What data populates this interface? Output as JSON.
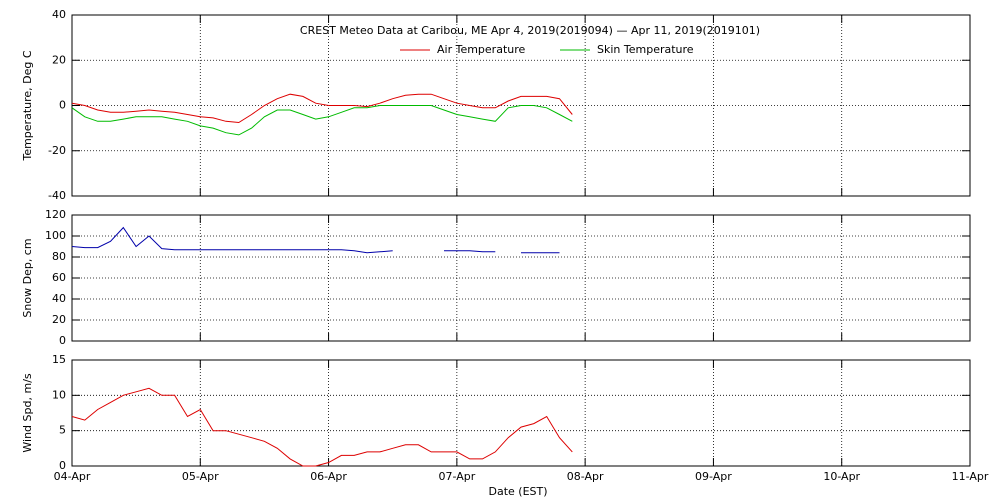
{
  "chart_data": [
    {
      "type": "line",
      "title": "CREST Meteo Data at Caribou, ME   Apr  4, 2019(2019094) — Apr 11, 2019(2019101)",
      "y_label": "Temperature, Deg C",
      "grid": true,
      "x": [
        4.0,
        4.1,
        4.2,
        4.3,
        4.4,
        4.5,
        4.6,
        4.7,
        4.8,
        4.9,
        5.0,
        5.1,
        5.2,
        5.3,
        5.4,
        5.5,
        5.6,
        5.7,
        5.8,
        5.9,
        6.0,
        6.1,
        6.2,
        6.3,
        6.4,
        6.5,
        6.6,
        6.7,
        6.8,
        6.9,
        7.0,
        7.1,
        7.2,
        7.3,
        7.4,
        7.5,
        7.6,
        7.7,
        7.8,
        7.9
      ],
      "xlim": [
        4,
        11
      ],
      "xticks": [
        4,
        5,
        6,
        7,
        8,
        9,
        10,
        11
      ],
      "ylim": [
        -40,
        40
      ],
      "yticks": [
        -40,
        -20,
        0,
        20,
        40
      ],
      "series": [
        {
          "name": "Air Temperature",
          "color": "#dd0000",
          "values": [
            1,
            0,
            -2,
            -3,
            -3,
            -2.5,
            -2,
            -2.5,
            -3,
            -4,
            -5,
            -5.5,
            -7,
            -7.5,
            -4,
            0,
            3,
            5,
            4,
            1,
            0,
            0,
            0,
            -0.5,
            1,
            3,
            4.5,
            5,
            5,
            3,
            1,
            0,
            -1,
            -1,
            2,
            4,
            4,
            4,
            3,
            -4
          ]
        },
        {
          "name": "Skin Temperature",
          "color": "#00bb00",
          "values": [
            -1,
            -5,
            -7,
            -7,
            -6,
            -5,
            -5,
            -5,
            -6,
            -7,
            -9,
            -10,
            -12,
            -13,
            -10,
            -5,
            -2,
            -2,
            -4,
            -6,
            -5,
            -3,
            -1,
            -1,
            0,
            0,
            0,
            0,
            0,
            -2,
            -4,
            -5,
            -6,
            -7,
            -1,
            0,
            0,
            -1,
            -4,
            -7
          ]
        }
      ]
    },
    {
      "type": "line",
      "y_label": "Snow Dep, cm",
      "grid": true,
      "x": [
        4.0,
        4.1,
        4.2,
        4.3,
        4.4,
        4.5,
        4.6,
        4.7,
        4.8,
        4.9,
        5.0,
        5.1,
        5.2,
        5.3,
        5.4,
        5.5,
        5.6,
        5.7,
        5.8,
        5.9,
        6.0,
        6.1,
        6.2,
        6.3,
        6.4,
        6.5,
        6.6,
        6.7,
        6.8,
        6.9,
        7.0,
        7.1,
        7.2,
        7.3,
        7.4,
        7.5,
        7.6,
        7.7,
        7.8,
        7.9
      ],
      "xlim": [
        4,
        11
      ],
      "xticks": [
        4,
        5,
        6,
        7,
        8,
        9,
        10,
        11
      ],
      "ylim": [
        0,
        120
      ],
      "yticks": [
        0,
        20,
        40,
        60,
        80,
        100,
        120
      ],
      "series": [
        {
          "color": "#0000aa",
          "values": [
            90,
            89,
            89,
            95,
            108,
            90,
            100,
            88,
            87,
            87,
            87,
            87,
            87,
            87,
            87,
            87,
            87,
            87,
            87,
            87,
            87,
            87,
            86,
            84,
            85,
            86,
            null,
            null,
            null,
            86,
            86,
            86,
            85,
            85,
            null,
            84,
            84,
            84,
            84,
            null
          ]
        }
      ]
    },
    {
      "type": "line",
      "y_label": "Wind Spd, m/s",
      "x_label": "Date (EST)",
      "grid": true,
      "x": [
        4.0,
        4.1,
        4.2,
        4.3,
        4.4,
        4.5,
        4.6,
        4.7,
        4.8,
        4.9,
        5.0,
        5.1,
        5.2,
        5.3,
        5.4,
        5.5,
        5.6,
        5.7,
        5.8,
        5.9,
        6.0,
        6.1,
        6.2,
        6.3,
        6.4,
        6.5,
        6.6,
        6.7,
        6.8,
        6.9,
        7.0,
        7.1,
        7.2,
        7.3,
        7.4,
        7.5,
        7.6,
        7.7,
        7.8,
        7.9
      ],
      "xlim": [
        4,
        11
      ],
      "xticks": [
        {
          "value": 4,
          "label": "04-Apr"
        },
        {
          "value": 5,
          "label": "05-Apr"
        },
        {
          "value": 6,
          "label": "06-Apr"
        },
        {
          "value": 7,
          "label": "07-Apr"
        },
        {
          "value": 8,
          "label": "08-Apr"
        },
        {
          "value": 9,
          "label": "09-Apr"
        },
        {
          "value": 10,
          "label": "10-Apr"
        },
        {
          "value": 11,
          "label": "11-Apr"
        }
      ],
      "ylim": [
        0,
        15
      ],
      "yticks": [
        0,
        5,
        10,
        15
      ],
      "series": [
        {
          "color": "#dd0000",
          "values": [
            7,
            6.5,
            8,
            9,
            10,
            10.5,
            11,
            10,
            10,
            7,
            8,
            5,
            5,
            4.5,
            4,
            3.5,
            2.5,
            1,
            0,
            0,
            0.5,
            1.5,
            1.5,
            2,
            2,
            2.5,
            3,
            3,
            2,
            2,
            2,
            1,
            1,
            2,
            4,
            5.5,
            6,
            7,
            4,
            2
          ]
        }
      ]
    }
  ]
}
